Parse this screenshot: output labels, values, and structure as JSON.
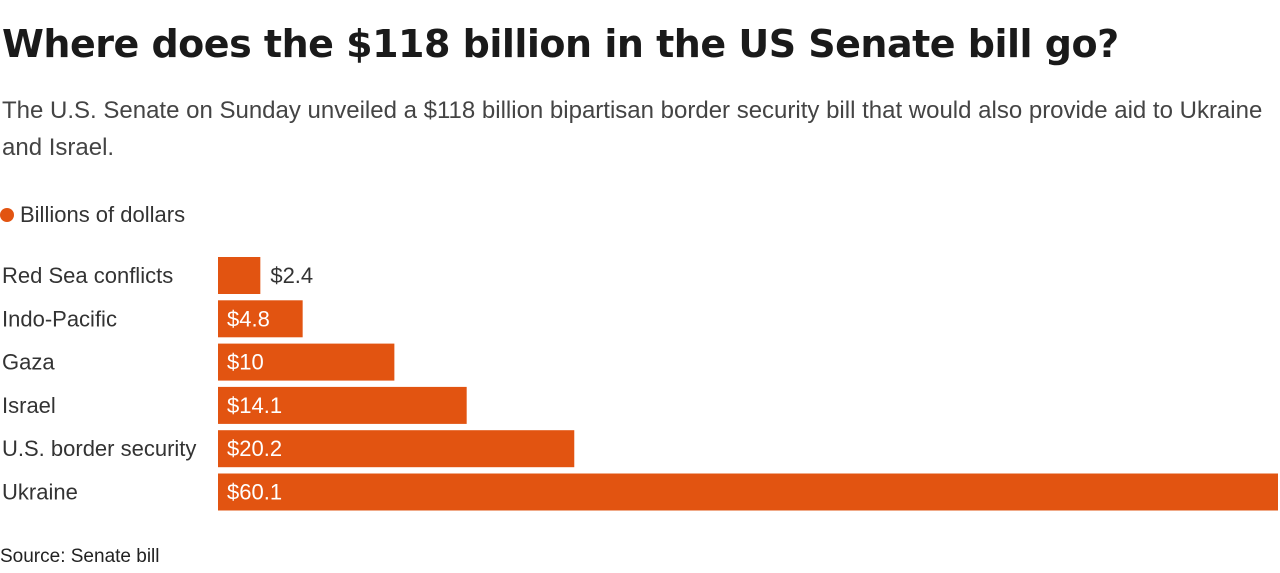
{
  "header": {
    "title": "Where does the $118 billion in the US Senate bill go?",
    "subtitle": "The U.S. Senate on Sunday unveiled a $118 billion bipartisan border security bill that would also provide aid to Ukraine and Israel."
  },
  "legend": {
    "label": "Billions of dollars",
    "color": "#e25411"
  },
  "colors": {
    "bar": "#e25411",
    "label_inside": "#ffffff",
    "label_outside": "#333333",
    "category_text": "#333333"
  },
  "chart_data": {
    "type": "bar",
    "orientation": "horizontal",
    "title": "Where does the $118 billion in the US Senate bill go?",
    "series": [
      {
        "name": "Billions of dollars",
        "values": [
          2.4,
          4.8,
          10,
          14.1,
          20.2,
          60.1
        ]
      }
    ],
    "categories": [
      "Red Sea conflicts",
      "Indo-Pacific",
      "Gaza",
      "Israel",
      "U.S. border security",
      "Ukraine"
    ],
    "values": [
      2.4,
      4.8,
      10,
      14.1,
      20.2,
      60.1
    ],
    "value_labels": [
      "$2.4",
      "$4.8",
      "$10",
      "$14.1",
      "$20.2",
      "$60.1"
    ],
    "xlim": [
      0,
      60.1
    ],
    "grid": false,
    "xlabel": "",
    "ylabel": ""
  },
  "footer": {
    "source": "Source: Senate bill"
  }
}
